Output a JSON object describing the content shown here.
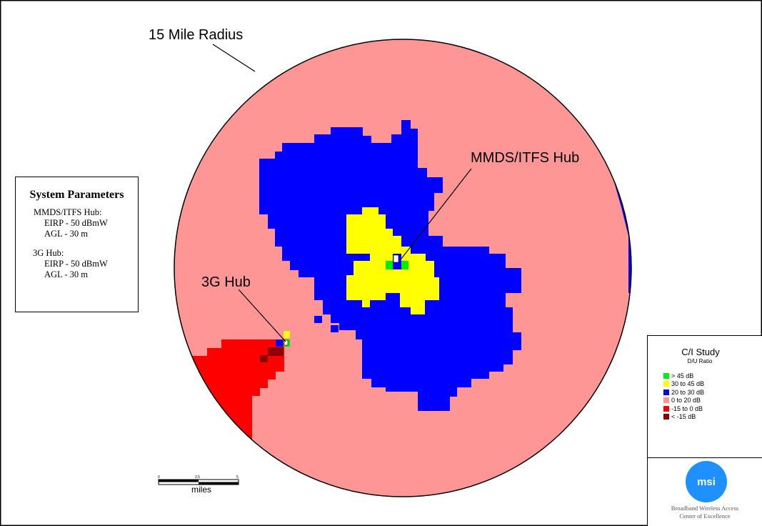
{
  "callouts": {
    "radius": "15 Mile Radius",
    "mmds_hub": "MMDS/ITFS Hub",
    "g3_hub": "3G Hub"
  },
  "parameters": {
    "title": "System Parameters",
    "mmds_label": "MMDS/ITFS Hub:",
    "mmds_eirp": "EIRP - 50 dBmW",
    "mmds_agl": "AGL - 30 m",
    "g3_label": "3G Hub:",
    "g3_eirp": "EIRP - 50 dBmW",
    "g3_agl": "AGL - 30 m"
  },
  "legend": {
    "title": "C/I Study",
    "subtitle": "D/U Ratio",
    "items": [
      {
        "label": "> 45 dB",
        "color": "#00ee00"
      },
      {
        "label": "30 to 45 dB",
        "color": "#ffff00"
      },
      {
        "label": "20 to 30 dB",
        "color": "#0000ff"
      },
      {
        "label": "0 to 20 dB",
        "color": "#ff9696"
      },
      {
        "label": "-15 to 0 dB",
        "color": "#ff0000"
      },
      {
        "label": "< -15 dB",
        "color": "#8b0000"
      }
    ]
  },
  "scale_bar": {
    "unit_label": "miles",
    "ticks": [
      "0",
      "2.5",
      "5"
    ]
  },
  "logo": {
    "mark": "msi",
    "line1": "Broadband Wireless Access",
    "line2": "Center of Excellence"
  },
  "colors": {
    "border": "#000000",
    "pink": "#ff9696",
    "blue": "#0000ff",
    "yellow": "#ffff00",
    "green": "#00ee00",
    "red": "#ff0000",
    "darkred": "#8b0000",
    "logo_blue": "#1e90ff"
  }
}
